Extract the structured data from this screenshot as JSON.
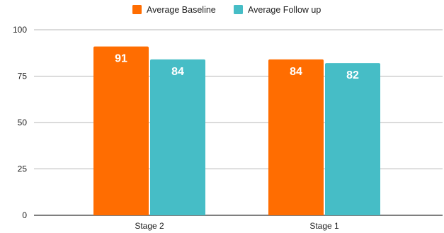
{
  "chart_data": {
    "type": "bar",
    "categories": [
      "Stage 2",
      "Stage 1"
    ],
    "series": [
      {
        "name": "Average Baseline",
        "values": [
          91,
          84
        ],
        "color": "#FF6D01"
      },
      {
        "name": "Average Follow up",
        "values": [
          84,
          82
        ],
        "color": "#46BDC6"
      }
    ],
    "title": "",
    "xlabel": "",
    "ylabel": "",
    "ylim": [
      0,
      100
    ],
    "yticks": [
      0,
      25,
      50,
      75,
      100
    ],
    "grid": true,
    "legend_position": "top-center",
    "data_labels": true
  }
}
